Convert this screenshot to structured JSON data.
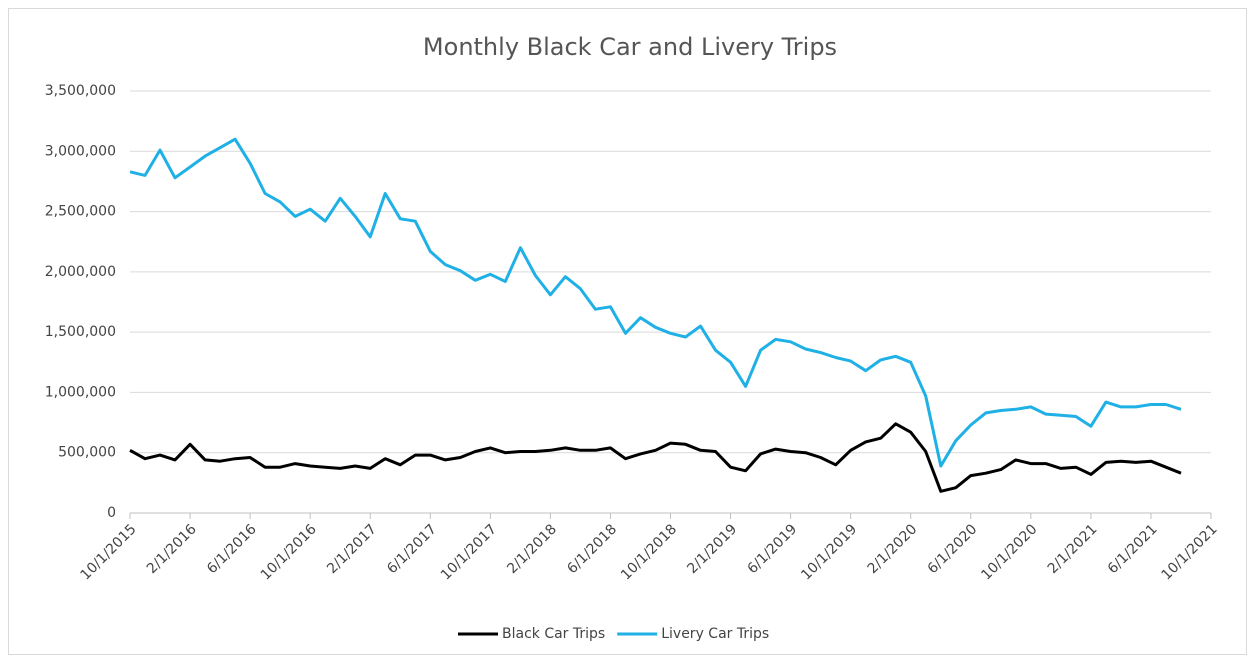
{
  "chart_data": {
    "type": "line",
    "title": "Monthly Black Car and Livery Trips",
    "categories": [
      "10/1/2015",
      null,
      null,
      null,
      "2/1/2016",
      null,
      null,
      null,
      "6/1/2016",
      null,
      null,
      null,
      "10/1/2016",
      null,
      null,
      null,
      "2/1/2017",
      null,
      null,
      null,
      "6/1/2017",
      null,
      null,
      null,
      "10/1/2017",
      null,
      null,
      null,
      "2/1/2018",
      null,
      null,
      null,
      "6/1/2018",
      null,
      null,
      null,
      "10/1/2018",
      null,
      null,
      null,
      "2/1/2019",
      null,
      null,
      null,
      "6/1/2019",
      null,
      null,
      null,
      "10/1/2019",
      null,
      null,
      null,
      "2/1/2020",
      null,
      null,
      null,
      "6/1/2020",
      null,
      null,
      null,
      "10/1/2020",
      null,
      null,
      null,
      "2/1/2021",
      null,
      null,
      null,
      "6/1/2021",
      null,
      null,
      null,
      "10/1/2021"
    ],
    "series": [
      {
        "name": "Black Car Trips",
        "color": "#000000",
        "values": [
          520000,
          450000,
          480000,
          440000,
          570000,
          440000,
          430000,
          450000,
          460000,
          380000,
          380000,
          410000,
          390000,
          380000,
          370000,
          390000,
          370000,
          450000,
          400000,
          480000,
          480000,
          440000,
          460000,
          510000,
          540000,
          500000,
          510000,
          510000,
          520000,
          540000,
          520000,
          520000,
          540000,
          450000,
          490000,
          520000,
          580000,
          570000,
          520000,
          510000,
          380000,
          350000,
          490000,
          530000,
          510000,
          500000,
          460000,
          400000,
          520000,
          590000,
          620000,
          740000,
          670000,
          510000,
          180000,
          210000,
          310000,
          330000,
          360000,
          440000,
          410000,
          410000,
          370000,
          380000,
          320000,
          420000,
          430000,
          420000,
          430000,
          380000,
          330000,
          null,
          null
        ]
      },
      {
        "name": "Livery Car Trips",
        "color": "#1fb0e6",
        "values": [
          2830000,
          2800000,
          3010000,
          2780000,
          2870000,
          2960000,
          3030000,
          3100000,
          2900000,
          2650000,
          2580000,
          2460000,
          2520000,
          2420000,
          2610000,
          2460000,
          2290000,
          2650000,
          2440000,
          2420000,
          2170000,
          2060000,
          2010000,
          1930000,
          1980000,
          1920000,
          2200000,
          1970000,
          1810000,
          1960000,
          1860000,
          1690000,
          1710000,
          1490000,
          1620000,
          1540000,
          1490000,
          1460000,
          1550000,
          1350000,
          1250000,
          1050000,
          1350000,
          1440000,
          1420000,
          1360000,
          1330000,
          1290000,
          1260000,
          1180000,
          1270000,
          1300000,
          1250000,
          970000,
          390000,
          600000,
          730000,
          830000,
          850000,
          860000,
          880000,
          820000,
          810000,
          800000,
          720000,
          920000,
          880000,
          880000,
          900000,
          900000,
          860000,
          null,
          null
        ]
      }
    ],
    "ylim": [
      0,
      3500000
    ],
    "yticks": [
      0,
      {
        "value": 500000,
        "label": "500,000"
      },
      {
        "value": 1000000,
        "label": "1,000,000"
      },
      {
        "value": 1500000,
        "label": "1,500,000"
      },
      {
        "value": 2000000,
        "label": "2,000,000"
      },
      {
        "value": 2500000,
        "label": "2,500,000"
      },
      {
        "value": 3000000,
        "label": "3,000,000"
      },
      {
        "value": 3500000,
        "label": "3,500,000"
      }
    ],
    "grid": true,
    "legend": "bottom"
  }
}
